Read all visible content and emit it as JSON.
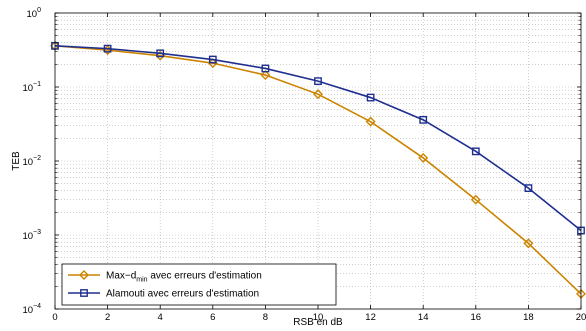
{
  "chart_data": {
    "type": "line",
    "title": "",
    "xlabel": "RSB en dB",
    "ylabel": "TEB",
    "xlim": [
      0,
      20
    ],
    "ylim": [
      0.0001,
      1
    ],
    "yscale": "log",
    "grid": true,
    "legend_position": "bottom-left",
    "x": [
      0,
      2,
      4,
      6,
      8,
      10,
      12,
      14,
      16,
      18,
      20
    ],
    "x_tick_labels": [
      "0",
      "2",
      "4",
      "6",
      "8",
      "10",
      "12",
      "14",
      "16",
      "18",
      "20"
    ],
    "y_tick_labels": [
      {
        "base": "10",
        "exp": "0"
      },
      {
        "base": "10",
        "exp": "−1"
      },
      {
        "base": "10",
        "exp": "−2"
      },
      {
        "base": "10",
        "exp": "−3"
      },
      {
        "base": "10",
        "exp": "−4"
      }
    ],
    "series": [
      {
        "name": "Max−d",
        "name_subscript": "min",
        "name_suffix": " avec erreurs d'estimation",
        "color": "#cc8400",
        "marker": "diamond",
        "values": [
          0.36,
          0.315,
          0.265,
          0.21,
          0.145,
          0.08,
          0.034,
          0.011,
          0.003,
          0.00077,
          0.00016
        ]
      },
      {
        "name": "Alamouti avec erreurs d'estimation",
        "color": "#1f2f8f",
        "marker": "square",
        "values": [
          0.36,
          0.33,
          0.285,
          0.235,
          0.178,
          0.12,
          0.072,
          0.036,
          0.0135,
          0.0043,
          0.00115
        ]
      }
    ]
  }
}
